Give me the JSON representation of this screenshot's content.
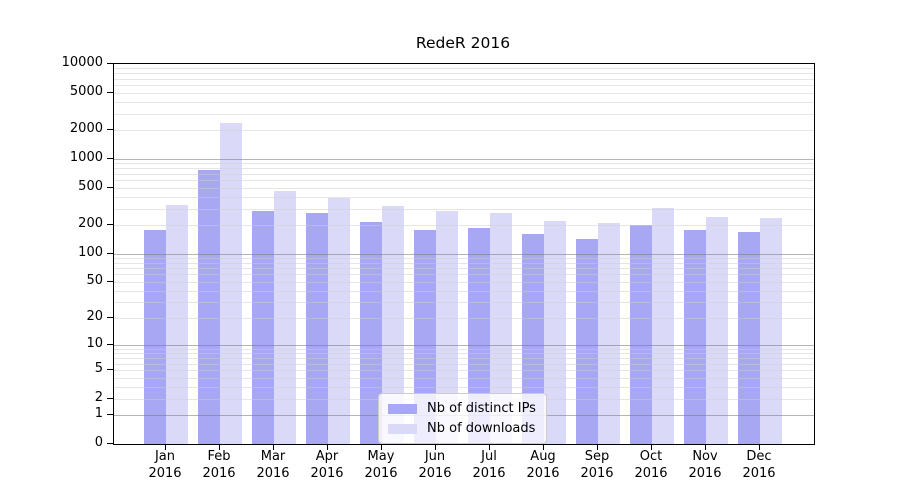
{
  "title": "RedeR 2016",
  "chart_data": {
    "type": "bar",
    "title": "RedeR 2016",
    "categories": [
      "Jan 2016",
      "Feb 2016",
      "Mar 2016",
      "Apr 2016",
      "May 2016",
      "Jun 2016",
      "Jul 2016",
      "Aug 2016",
      "Sep 2016",
      "Oct 2016",
      "Nov 2016",
      "Dec 2016"
    ],
    "category_month": [
      "Jan",
      "Feb",
      "Mar",
      "Apr",
      "May",
      "Jun",
      "Jul",
      "Aug",
      "Sep",
      "Oct",
      "Nov",
      "Dec"
    ],
    "category_year": [
      "2016",
      "2016",
      "2016",
      "2016",
      "2016",
      "2016",
      "2016",
      "2016",
      "2016",
      "2016",
      "2016",
      "2016"
    ],
    "series": [
      {
        "name": "Nb of distinct IPs",
        "color": "#a7a7f3",
        "values": [
          180,
          775,
          282,
          268,
          218,
          179,
          187,
          160,
          143,
          199,
          178,
          171
        ]
      },
      {
        "name": "Nb of downloads",
        "color": "#dadaf8",
        "values": [
          328,
          2400,
          460,
          390,
          322,
          283,
          267,
          222,
          210,
          304,
          242,
          238
        ]
      }
    ],
    "y_axis": {
      "scale": "log1p",
      "ylim": [
        0,
        10000
      ],
      "tick_labels": [
        "0",
        "1",
        "2",
        "5",
        "10",
        "20",
        "50",
        "100",
        "200",
        "500",
        "1000",
        "2000",
        "5000",
        "10000"
      ],
      "major_gridlines": [
        1,
        10,
        100,
        1000
      ],
      "minor_gridlines": "n×10^k for n=2..9, k=0..3",
      "grid": true
    },
    "legend": {
      "position": "inside-bottom-center",
      "entries": [
        "Nb of distinct IPs",
        "Nb of downloads"
      ]
    },
    "colors": {
      "axis": "#000000",
      "major_grid": "#bababa",
      "minor_grid": "#e9e9e9",
      "background": "#ffffff",
      "title_text": "#000000"
    }
  }
}
